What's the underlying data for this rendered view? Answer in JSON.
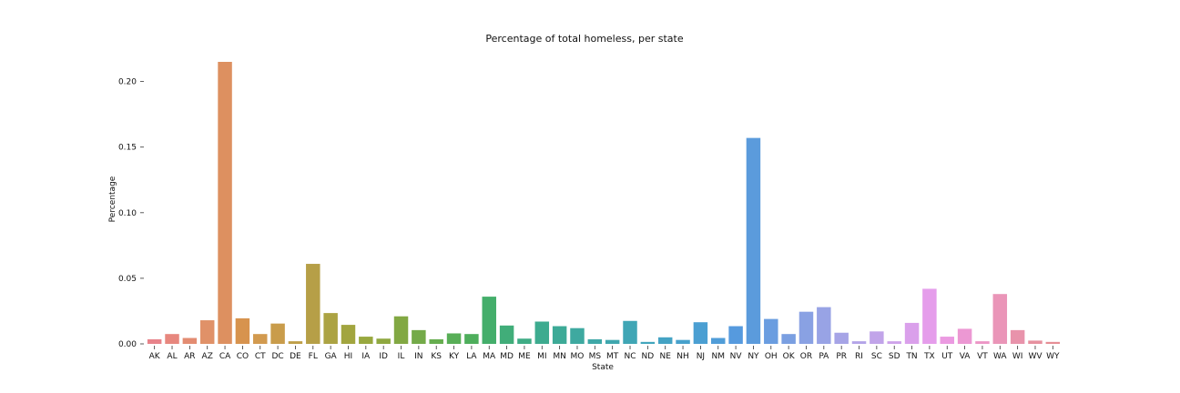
{
  "chart_data": {
    "type": "bar",
    "title": "Percentage of total homeless, per state",
    "xlabel": "State",
    "ylabel": "Percentage",
    "ylim": [
      0,
      0.22
    ],
    "yticks": [
      "0.00",
      "0.05",
      "0.10",
      "0.15",
      "0.20"
    ],
    "categories": [
      "AK",
      "AL",
      "AR",
      "AZ",
      "CA",
      "CO",
      "CT",
      "DC",
      "DE",
      "FL",
      "GA",
      "HI",
      "IA",
      "ID",
      "IL",
      "IN",
      "KS",
      "KY",
      "LA",
      "MA",
      "MD",
      "ME",
      "MI",
      "MN",
      "MO",
      "MS",
      "MT",
      "NC",
      "ND",
      "NE",
      "NH",
      "NJ",
      "NM",
      "NV",
      "NY",
      "OH",
      "OK",
      "OR",
      "PA",
      "PR",
      "RI",
      "SC",
      "SD",
      "TN",
      "TX",
      "UT",
      "VA",
      "VT",
      "WA",
      "WI",
      "WV",
      "WY"
    ],
    "values": [
      0.0035,
      0.0075,
      0.0045,
      0.018,
      0.215,
      0.0195,
      0.0075,
      0.0155,
      0.002,
      0.061,
      0.0235,
      0.0145,
      0.0055,
      0.004,
      0.021,
      0.0105,
      0.0035,
      0.008,
      0.0075,
      0.036,
      0.014,
      0.004,
      0.017,
      0.0135,
      0.012,
      0.0035,
      0.003,
      0.0175,
      0.0015,
      0.005,
      0.003,
      0.0165,
      0.0045,
      0.0135,
      0.157,
      0.019,
      0.0075,
      0.0245,
      0.028,
      0.0085,
      0.002,
      0.0095,
      0.002,
      0.016,
      0.042,
      0.0055,
      0.0115,
      0.002,
      0.038,
      0.0105,
      0.0025,
      0.0015
    ],
    "colors": [
      "#e8838a",
      "#e7877e",
      "#e38c72",
      "#e09168",
      "#dd9060",
      "#d7934e",
      "#d29a4f",
      "#c99c4b",
      "#bf9f49",
      "#b69f47",
      "#aca343",
      "#a2a53f",
      "#98a83f",
      "#8fa840",
      "#82a843",
      "#74aa49",
      "#66ad4f",
      "#58ae57",
      "#4eae5c",
      "#44ae6b",
      "#41ad79",
      "#3fac85",
      "#3dab8f",
      "#3daa97",
      "#3ea9a0",
      "#3fa8a7",
      "#3fa7ae",
      "#40a6b5",
      "#42a5bc",
      "#44a3c4",
      "#47a1cc",
      "#4b9fd2",
      "#509dd8",
      "#569ade",
      "#5b9bdc",
      "#6a9de0",
      "#7a9fe1",
      "#89a1e3",
      "#98a3e5",
      "#a6a4e6",
      "#b3a4e8",
      "#c1a4e9",
      "#cea3ea",
      "#daa0eb",
      "#e59deb",
      "#eb9ae1",
      "#ec98d3",
      "#ec96c6",
      "#ea95b8",
      "#e893ab",
      "#e6919f",
      "#e58e95"
    ],
    "grid": false,
    "legend": "none"
  }
}
